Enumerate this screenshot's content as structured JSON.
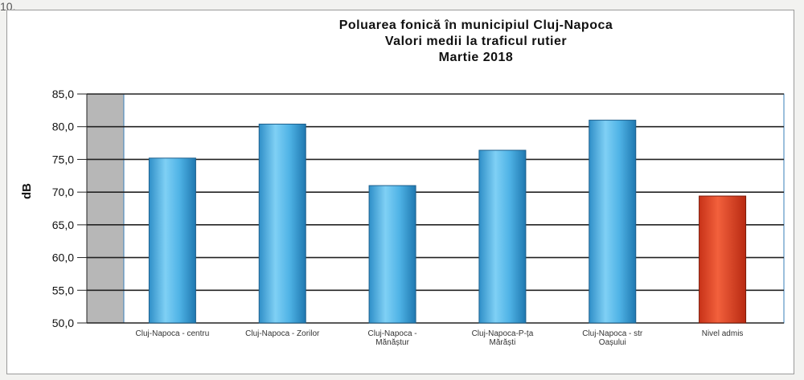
{
  "corner_text": "10.",
  "chart_data": {
    "type": "bar",
    "title": [
      "Poluarea fonică în municipiul Cluj-Napoca",
      "Valori medii la traficul rutier",
      "Martie 2018"
    ],
    "xlabel": "",
    "ylabel": "dB",
    "ylim": [
      50,
      85
    ],
    "yticks": [
      "50,0",
      "55,0",
      "60,0",
      "65,0",
      "70,0",
      "75,0",
      "80,0",
      "85,0"
    ],
    "grid": true,
    "legend": "none",
    "categories": [
      [
        "Cluj-Napoca - centru"
      ],
      [
        "Cluj-Napoca - Zorilor"
      ],
      [
        "Cluj-Napoca -",
        "Mănăștur"
      ],
      [
        "Cluj-Napoca-P-ța",
        "Mărăști"
      ],
      [
        "Cluj-Napoca - str",
        "Oașului"
      ],
      [
        "Nivel admis"
      ]
    ],
    "values": [
      75.2,
      80.4,
      71.0,
      76.4,
      81.0,
      69.4
    ],
    "colors": [
      "#4fb3e6",
      "#4fb3e6",
      "#4fb3e6",
      "#4fb3e6",
      "#4fb3e6",
      "#e8492a"
    ],
    "plot_background": "#ffffff",
    "grid_color": "#222222"
  }
}
